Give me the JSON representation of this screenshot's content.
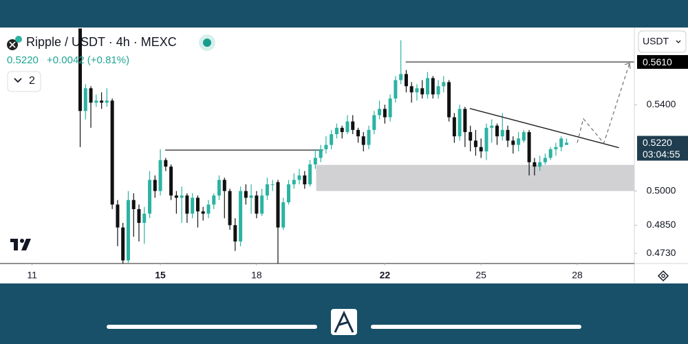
{
  "header": {
    "symbol": "Ripple / USDT · 4h · MEXC",
    "price": "0.5220",
    "change": "+0.0042 (+0.81%)",
    "indicators": "2",
    "currency": "USDT"
  },
  "chart_data": {
    "type": "candlestick",
    "log": true,
    "up_color": "#2bb3a3",
    "down_color": "#111111",
    "xlim": [
      10.0,
      29.78
    ],
    "xticks": [
      11,
      15,
      18,
      22,
      25,
      28
    ],
    "xticks_bold": [
      false,
      true,
      false,
      true,
      false,
      false
    ],
    "ylim": [
      0.4687,
      0.5785
    ],
    "yticks": [
      {
        "value": 0.54,
        "label": "0.5400"
      },
      {
        "value": 0.5,
        "label": "0.5000"
      },
      {
        "value": 0.485,
        "label": "0.4850"
      },
      {
        "value": 0.473,
        "label": "0.4730"
      }
    ],
    "price_tags": [
      {
        "value": 0.561,
        "label": "0.5610",
        "color": "#000000"
      },
      {
        "value": 0.522,
        "label": "0.5220",
        "color": "#1f3d4f"
      }
    ],
    "countdown": "03:04:55",
    "x": [
      12.5,
      12.667,
      12.833,
      13,
      13.167,
      13.333,
      13.5,
      13.667,
      13.833,
      14,
      14.167,
      14.333,
      14.5,
      14.667,
      14.833,
      15,
      15.167,
      15.333,
      15.5,
      15.667,
      15.833,
      16,
      16.167,
      16.333,
      16.5,
      16.667,
      16.833,
      17,
      17.167,
      17.333,
      17.5,
      17.667,
      17.833,
      18,
      18.167,
      18.333,
      18.5,
      18.667,
      18.833,
      19,
      19.167,
      19.333,
      19.5,
      19.667,
      19.833,
      20,
      20.167,
      20.333,
      20.5,
      20.667,
      20.833,
      21,
      21.167,
      21.333,
      21.5,
      21.667,
      21.833,
      22,
      22.167,
      22.333,
      22.5,
      22.667,
      22.833,
      23,
      23.167,
      23.333,
      23.5,
      23.667,
      23.833,
      24,
      24.167,
      24.333,
      24.5,
      24.667,
      24.833,
      25,
      25.167,
      25.333,
      25.5,
      25.667,
      25.833,
      26,
      26.167,
      26.333,
      26.5,
      26.667,
      26.833,
      27,
      27.167,
      27.333,
      27.5,
      27.667
    ],
    "open": [
      0.578,
      0.537,
      0.548,
      0.541,
      0.542,
      0.541,
      0.542,
      0.494,
      0.484,
      0.47,
      0.496,
      0.492,
      0.486,
      0.49,
      0.505,
      0.5,
      0.514,
      0.511,
      0.498,
      0.497,
      0.498,
      0.49,
      0.497,
      0.491,
      0.49,
      0.494,
      0.498,
      0.505,
      0.5,
      0.485,
      0.478,
      0.5,
      0.497,
      0.498,
      0.49,
      0.498,
      0.503,
      0.504,
      0.484,
      0.495,
      0.503,
      0.505,
      0.507,
      0.503,
      0.512,
      0.515,
      0.519,
      0.521,
      0.526,
      0.529,
      0.527,
      0.532,
      0.528,
      0.525,
      0.521,
      0.528,
      0.535,
      0.538,
      0.534,
      0.543,
      0.552,
      0.555,
      0.549,
      0.546,
      0.548,
      0.545,
      0.553,
      0.545,
      0.549,
      0.551,
      0.534,
      0.525,
      0.538,
      0.527,
      0.523,
      0.52,
      0.518,
      0.529,
      0.53,
      0.525,
      0.528,
      0.523,
      0.521,
      0.523,
      0.527,
      0.513,
      0.511,
      0.513,
      0.515,
      0.519,
      0.52,
      0.521
    ],
    "high": [
      0.578,
      0.55,
      0.549,
      0.545,
      0.546,
      0.548,
      0.543,
      0.496,
      0.486,
      0.5,
      0.499,
      0.494,
      0.493,
      0.509,
      0.507,
      0.519,
      0.515,
      0.512,
      0.5,
      0.502,
      0.499,
      0.499,
      0.498,
      0.493,
      0.496,
      0.499,
      0.507,
      0.506,
      0.501,
      0.488,
      0.502,
      0.503,
      0.503,
      0.5,
      0.501,
      0.506,
      0.505,
      0.505,
      0.497,
      0.505,
      0.508,
      0.51,
      0.509,
      0.514,
      0.519,
      0.521,
      0.525,
      0.528,
      0.531,
      0.53,
      0.535,
      0.535,
      0.529,
      0.527,
      0.53,
      0.537,
      0.542,
      0.54,
      0.545,
      0.554,
      0.572,
      0.557,
      0.551,
      0.55,
      0.552,
      0.556,
      0.554,
      0.552,
      0.554,
      0.552,
      0.536,
      0.54,
      0.539,
      0.53,
      0.528,
      0.524,
      0.531,
      0.533,
      0.531,
      0.536,
      0.53,
      0.525,
      0.527,
      0.528,
      0.528,
      0.515,
      0.516,
      0.517,
      0.52,
      0.522,
      0.525,
      0.524
    ],
    "low": [
      0.52,
      0.533,
      0.529,
      0.539,
      0.538,
      0.539,
      0.492,
      0.476,
      0.4687,
      0.469,
      0.48,
      0.478,
      0.477,
      0.488,
      0.497,
      0.498,
      0.509,
      0.496,
      0.49,
      0.486,
      0.486,
      0.488,
      0.484,
      0.487,
      0.488,
      0.492,
      0.496,
      0.488,
      0.483,
      0.474,
      0.476,
      0.494,
      0.49,
      0.488,
      0.489,
      0.496,
      0.5,
      0.4687,
      0.483,
      0.494,
      0.501,
      0.503,
      0.501,
      0.502,
      0.51,
      0.513,
      0.517,
      0.519,
      0.524,
      0.524,
      0.526,
      0.526,
      0.522,
      0.518,
      0.519,
      0.526,
      0.533,
      0.531,
      0.532,
      0.541,
      0.55,
      0.546,
      0.541,
      0.542,
      0.543,
      0.543,
      0.543,
      0.543,
      0.546,
      0.532,
      0.522,
      0.523,
      0.52,
      0.518,
      0.516,
      0.515,
      0.514,
      0.522,
      0.521,
      0.523,
      0.52,
      0.517,
      0.518,
      0.522,
      0.507,
      0.507,
      0.509,
      0.512,
      0.514,
      0.516,
      0.518,
      0.521
    ],
    "close": [
      0.537,
      0.548,
      0.541,
      0.542,
      0.541,
      0.542,
      0.494,
      0.484,
      0.47,
      0.496,
      0.492,
      0.486,
      0.49,
      0.505,
      0.5,
      0.514,
      0.511,
      0.498,
      0.497,
      0.498,
      0.49,
      0.497,
      0.491,
      0.49,
      0.494,
      0.498,
      0.505,
      0.5,
      0.485,
      0.478,
      0.5,
      0.497,
      0.498,
      0.49,
      0.498,
      0.503,
      0.503,
      0.484,
      0.495,
      0.503,
      0.505,
      0.507,
      0.503,
      0.512,
      0.515,
      0.519,
      0.521,
      0.526,
      0.529,
      0.527,
      0.532,
      0.528,
      0.525,
      0.521,
      0.528,
      0.535,
      0.538,
      0.534,
      0.543,
      0.552,
      0.555,
      0.549,
      0.546,
      0.548,
      0.545,
      0.553,
      0.545,
      0.549,
      0.551,
      0.534,
      0.525,
      0.538,
      0.527,
      0.523,
      0.52,
      0.518,
      0.529,
      0.53,
      0.525,
      0.528,
      0.523,
      0.521,
      0.524,
      0.527,
      0.513,
      0.511,
      0.513,
      0.515,
      0.519,
      0.52,
      0.524,
      0.522
    ],
    "level_lines": [
      {
        "price": 0.5186,
        "from": 15.15,
        "to": 20.08
      },
      {
        "price": 0.561,
        "from": 22.65,
        "to": 29.78
      }
    ],
    "zone": {
      "from": 19.86,
      "to": 29.78,
      "low": 0.5,
      "high": 0.5118
    },
    "trendline": {
      "x": [
        24.65,
        29.3
      ],
      "y": [
        0.5382,
        0.5197
      ]
    },
    "projection": {
      "x": [
        28.0,
        28.19,
        28.83,
        29.63
      ],
      "y": [
        0.522,
        0.5333,
        0.5218,
        0.5604
      ]
    }
  }
}
